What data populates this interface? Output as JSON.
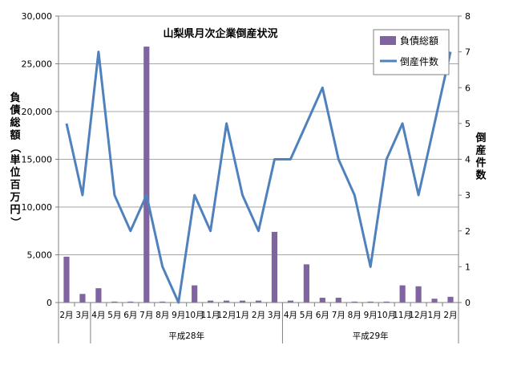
{
  "chart_data": {
    "type": "bar+line",
    "title": "山梨県月次企業倒産状況",
    "categories": [
      "2月",
      "3月",
      "4月",
      "5月",
      "6月",
      "7月",
      "8月",
      "9月",
      "10月",
      "11月",
      "12月",
      "1月",
      "2月",
      "3月",
      "4月",
      "5月",
      "6月",
      "7月",
      "8月",
      "9月",
      "10月",
      "11月",
      "12月",
      "1月",
      "2月"
    ],
    "groups": [
      {
        "label": "",
        "start": 0,
        "end": 1
      },
      {
        "label": "平成28年",
        "start": 2,
        "end": 13
      },
      {
        "label": "平成29年",
        "start": 14,
        "end": 24
      }
    ],
    "y_left": {
      "label": "負債総額（単位百万円）",
      "ylim": [
        0,
        30000
      ],
      "ticks": [
        0,
        5000,
        10000,
        15000,
        20000,
        25000,
        30000
      ],
      "tick_labels": [
        "0",
        "5,000",
        "10,000",
        "15,000",
        "20,000",
        "25,000",
        "30,000"
      ]
    },
    "y_right": {
      "label": "倒産件数",
      "ylim": [
        0,
        8
      ],
      "ticks": [
        0,
        1,
        2,
        3,
        4,
        5,
        6,
        7,
        8
      ],
      "tick_labels": [
        "0",
        "1",
        "2",
        "3",
        "4",
        "5",
        "6",
        "7",
        "8"
      ]
    },
    "series": [
      {
        "name": "負債総額",
        "type": "bar",
        "axis": "left",
        "color": "#8064a2",
        "values": [
          4800,
          900,
          1500,
          100,
          100,
          26800,
          100,
          0,
          1800,
          200,
          200,
          200,
          200,
          7400,
          200,
          4000,
          500,
          500,
          100,
          100,
          100,
          1800,
          1700,
          400,
          600
        ]
      },
      {
        "name": "倒産件数",
        "type": "line",
        "axis": "right",
        "color": "#4f81bd",
        "values": [
          5,
          3,
          7,
          3,
          2,
          3,
          1,
          0,
          3,
          2,
          5,
          3,
          2,
          4,
          4,
          5,
          6,
          4,
          3,
          1,
          4,
          5,
          3,
          5,
          7
        ]
      }
    ],
    "legend": {
      "position": "top-right"
    },
    "grid": true
  }
}
